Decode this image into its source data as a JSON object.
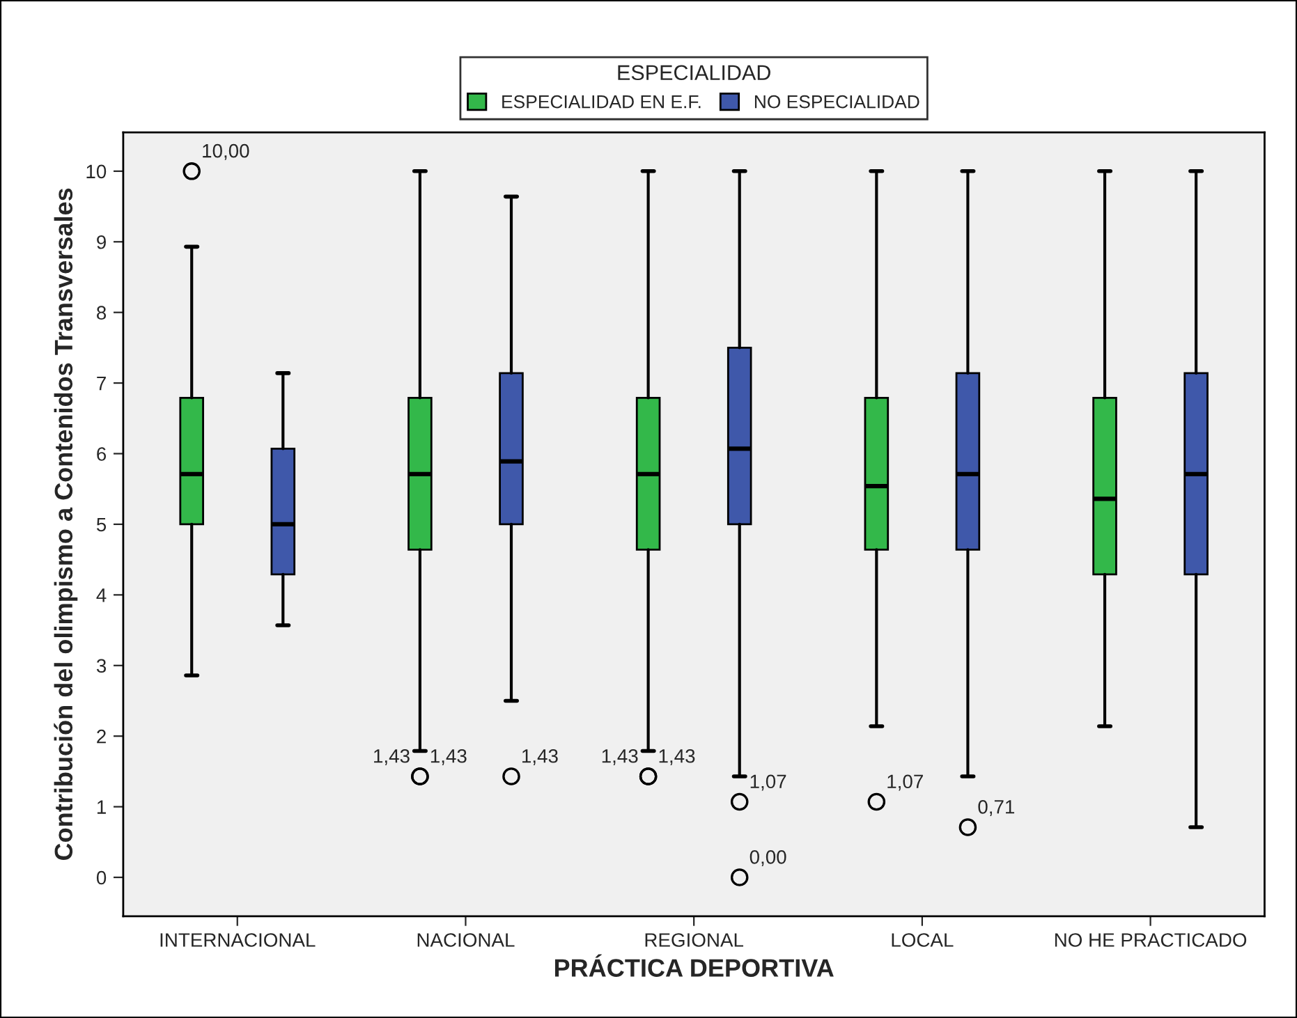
{
  "chart_data": {
    "type": "box",
    "xlabel": "PRÁCTICA DEPORTIVA",
    "ylabel": "Contribución del olimpismo a Contenidos Transversales",
    "legend_title": "ESPECIALIDAD",
    "legend": "top",
    "grid": false,
    "categories": [
      "INTERNACIONAL",
      "NACIONAL",
      "REGIONAL",
      "LOCAL",
      "NO HE PRACTICADO"
    ],
    "ylim": [
      -0.55,
      10.55
    ],
    "yticks": [
      0,
      1,
      2,
      3,
      4,
      5,
      6,
      7,
      8,
      9,
      10
    ],
    "series": [
      {
        "name": "ESPECIALIDAD EN E.F.",
        "color": "#33b84a",
        "boxes": [
          {
            "low": 2.86,
            "q1": 5.0,
            "median": 5.71,
            "q3": 6.79,
            "high": 8.93,
            "outliers": [
              10.0
            ]
          },
          {
            "low": 1.79,
            "q1": 4.64,
            "median": 5.71,
            "q3": 6.79,
            "high": 10.0,
            "outliers": [
              1.43,
              1.43
            ]
          },
          {
            "low": 1.79,
            "q1": 4.64,
            "median": 5.71,
            "q3": 6.79,
            "high": 10.0,
            "outliers": [
              1.43,
              1.43
            ]
          },
          {
            "low": 2.14,
            "q1": 4.64,
            "median": 5.54,
            "q3": 6.79,
            "high": 10.0,
            "outliers": [
              1.07
            ]
          },
          {
            "low": 2.14,
            "q1": 4.29,
            "median": 5.36,
            "q3": 6.79,
            "high": 10.0
          }
        ]
      },
      {
        "name": "NO ESPECIALIDAD",
        "color": "#3f58aa",
        "boxes": [
          {
            "low": 3.57,
            "q1": 4.29,
            "median": 5.0,
            "q3": 6.07,
            "high": 7.14
          },
          {
            "low": 2.5,
            "q1": 5.0,
            "median": 5.89,
            "q3": 7.14,
            "high": 9.64,
            "outliers": [
              1.43
            ]
          },
          {
            "low": 1.43,
            "q1": 5.0,
            "median": 6.07,
            "q3": 7.5,
            "high": 10.0,
            "outliers": [
              1.07,
              0.0
            ]
          },
          {
            "low": 1.43,
            "q1": 4.64,
            "median": 5.71,
            "q3": 7.14,
            "high": 10.0,
            "outliers": [
              0.71
            ]
          },
          {
            "low": 0.71,
            "q1": 4.29,
            "median": 5.71,
            "q3": 7.14,
            "high": 10.0
          }
        ]
      }
    ],
    "annotations": [
      "10,00",
      "1,43",
      "1,43",
      "1,43",
      "1,43",
      "1,43",
      "1,07",
      "0,00",
      "1,07",
      "0,71"
    ]
  }
}
